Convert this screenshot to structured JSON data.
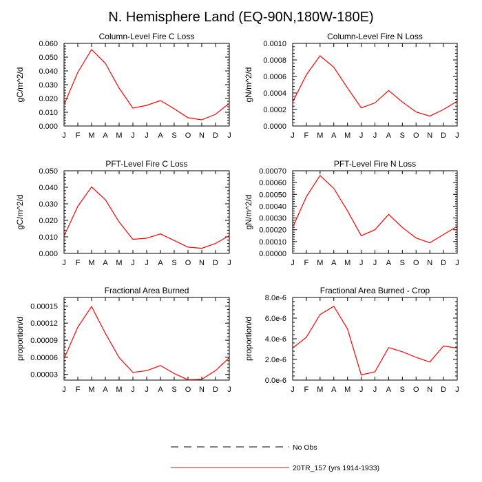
{
  "title": "N. Hemisphere Land (EQ-90N,180W-180E)",
  "colors": {
    "series": "#ff0000",
    "axis": "#000000"
  },
  "months": [
    "J",
    "F",
    "M",
    "A",
    "M",
    "J",
    "J",
    "A",
    "S",
    "O",
    "N",
    "D",
    "J"
  ],
  "chart_data": [
    {
      "type": "line",
      "title": "Column-Level Fire C Loss",
      "ylabel": "gC/m^2/d",
      "ylim": [
        0,
        0.06
      ],
      "yticks": [
        0,
        0.01,
        0.02,
        0.03,
        0.04,
        0.05,
        0.06
      ],
      "yticklabels": [
        "0.000",
        "0.010",
        "0.020",
        "0.030",
        "0.040",
        "0.050",
        "0.060"
      ],
      "series": [
        {
          "name": "20TR_157 (yrs 1914-1933)",
          "values": [
            0.0155,
            0.039,
            0.0555,
            0.0455,
            0.0275,
            0.013,
            0.015,
            0.0185,
            0.0125,
            0.006,
            0.0045,
            0.0085,
            0.0165
          ]
        }
      ]
    },
    {
      "type": "line",
      "title": "Column-Level Fire N Loss",
      "ylabel": "gN/m^2/d",
      "ylim": [
        0,
        0.001
      ],
      "yticks": [
        0,
        0.0002,
        0.0004,
        0.0006,
        0.0008,
        0.001
      ],
      "yticklabels": [
        "0.0000",
        "0.0002",
        "0.0004",
        "0.0006",
        "0.0008",
        "0.0010"
      ],
      "series": [
        {
          "name": "20TR_157 (yrs 1914-1933)",
          "values": [
            0.00029,
            0.00062,
            0.00085,
            0.00071,
            0.00046,
            0.00022,
            0.00028,
            0.00043,
            0.00029,
            0.00017,
            0.00012,
            0.0002,
            0.0003
          ]
        }
      ]
    },
    {
      "type": "line",
      "title": "PFT-Level Fire C Loss",
      "ylabel": "gC/m^2/d",
      "ylim": [
        0,
        0.05
      ],
      "yticks": [
        0,
        0.01,
        0.02,
        0.03,
        0.04,
        0.05
      ],
      "yticklabels": [
        "0.000",
        "0.010",
        "0.020",
        "0.030",
        "0.040",
        "0.050"
      ],
      "series": [
        {
          "name": "20TR_157 (yrs 1914-1933)",
          "values": [
            0.0105,
            0.0285,
            0.0402,
            0.0325,
            0.019,
            0.0085,
            0.0092,
            0.0118,
            0.0078,
            0.0038,
            0.0031,
            0.006,
            0.0108
          ]
        }
      ]
    },
    {
      "type": "line",
      "title": "PFT-Level Fire N Loss",
      "ylabel": "gN/m^2/d",
      "ylim": [
        0,
        0.0007
      ],
      "yticks": [
        0,
        0.0001,
        0.0002,
        0.0003,
        0.0004,
        0.0005,
        0.0006,
        0.0007
      ],
      "yticklabels": [
        "0.00000",
        "0.00010",
        "0.00020",
        "0.00030",
        "0.00040",
        "0.00050",
        "0.00060",
        "0.00070"
      ],
      "series": [
        {
          "name": "20TR_157 (yrs 1914-1933)",
          "values": [
            0.00022,
            0.00048,
            0.00066,
            0.00055,
            0.00036,
            0.00015,
            0.0002,
            0.00033,
            0.00022,
            0.00013,
            9e-05,
            0.00016,
            0.00023
          ]
        }
      ]
    },
    {
      "type": "line",
      "title": "Fractional Area Burned",
      "ylabel": "proportion/d",
      "ylim": [
        2e-05,
        0.000165
      ],
      "yticks": [
        3e-05,
        6e-05,
        9e-05,
        0.00012,
        0.00015
      ],
      "yticklabels": [
        "0.00003",
        "0.00006",
        "0.00009",
        "0.00012",
        "0.00015"
      ],
      "series": [
        {
          "name": "20TR_157 (yrs 1914-1933)",
          "values": [
            5.75e-05,
            0.000113,
            0.000149,
            0.000102,
            5.95e-05,
            3.35e-05,
            3.65e-05,
            4.55e-05,
            3.15e-05,
            2.05e-05,
            2.15e-05,
            3.65e-05,
            5.95e-05
          ]
        }
      ]
    },
    {
      "type": "line",
      "title": "Fractional Area Burned - Crop",
      "ylabel": "proportion/d",
      "ylim": [
        0,
        8e-06
      ],
      "yticks": [
        0,
        2e-06,
        4e-06,
        6e-06,
        8e-06
      ],
      "yticklabels": [
        "0.0e-6",
        "2.0e-6",
        "4.0e-6",
        "6.0e-6",
        "8.0e-6"
      ],
      "series": [
        {
          "name": "20TR_157 (yrs 1914-1933)",
          "values": [
            3.1e-06,
            4.15e-06,
            6.35e-06,
            7.15e-06,
            4.95e-06,
            5e-07,
            8e-07,
            3.15e-06,
            2.75e-06,
            2.2e-06,
            1.75e-06,
            3.3e-06,
            3.1e-06
          ]
        }
      ]
    }
  ],
  "legend": [
    {
      "label": "No Obs",
      "style": "dashed",
      "color": "#000000"
    },
    {
      "label": "20TR_157 (yrs 1914-1933)",
      "style": "solid",
      "color": "#ff0000"
    }
  ]
}
